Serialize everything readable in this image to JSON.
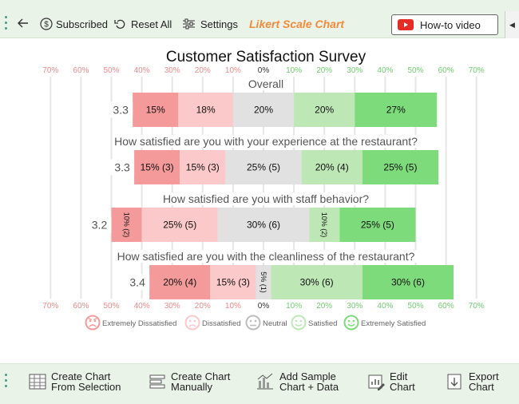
{
  "toolbar": {
    "subscribed_label": "Subscribed",
    "reset_label": "Reset All",
    "settings_label": "Settings",
    "brand_label": "Likert Scale Chart",
    "howto_label": "How-to video"
  },
  "bottom_toolbar": {
    "create_from_selection": "Create Chart\nFrom Selection",
    "create_manually": "Create Chart\nManually",
    "add_sample": "Add Sample\nChart + Data",
    "edit_chart": "Edit\nChart",
    "export_chart": "Export\nChart"
  },
  "colors": {
    "extremely_dissatisfied": "#f59a9a",
    "dissatisfied": "#fbc9c9",
    "neutral": "#e1e1e1",
    "satisfied": "#bde8b6",
    "extremely_satisfied": "#7edb7b",
    "axis_label": "#f08a8a",
    "axis_label_pos": "#6fcf6f"
  },
  "chart_data": {
    "type": "bar",
    "subtype": "diverging-stacked",
    "title": "Customer Satisfaction Survey",
    "axis_ticks": [
      "70%",
      "60%",
      "50%",
      "40%",
      "30%",
      "20%",
      "10%",
      "0%",
      "10%",
      "20%",
      "30%",
      "40%",
      "50%",
      "60%",
      "70%"
    ],
    "xlim": [
      -70,
      70
    ],
    "grid": true,
    "legend_position": "bottom",
    "legend": [
      "Extremely Dissatisfied",
      "Dissatisfied",
      "Neutral",
      "Satisfied",
      "Extremely Satisfied"
    ],
    "questions": [
      {
        "label": "Overall",
        "score": "3.3",
        "values": [
          15,
          18,
          20,
          20,
          27
        ],
        "labels": [
          "15%",
          "18%",
          "20%",
          "20%",
          "27%"
        ]
      },
      {
        "label": "How satisfied are you with your experience at the restaurant?",
        "score": "3.3",
        "values": [
          15,
          15,
          25,
          20,
          25
        ],
        "labels": [
          "15% (3)",
          "15% (3)",
          "25% (5)",
          "20% (4)",
          "25% (5)"
        ]
      },
      {
        "label": "How satisfied are you with staff behavior?",
        "score": "3.2",
        "values": [
          10,
          25,
          30,
          10,
          25
        ],
        "labels": [
          "10% (2)",
          "25% (5)",
          "30% (6)",
          "10% (2)",
          "25% (5)"
        ]
      },
      {
        "label": "How satisfied are you with the cleanliness of the restaurant?",
        "score": "3.4",
        "values": [
          20,
          15,
          5,
          30,
          30
        ],
        "labels": [
          "20% (4)",
          "15% (3)",
          "5% (1)",
          "30% (6)",
          "30% (6)"
        ]
      }
    ]
  }
}
